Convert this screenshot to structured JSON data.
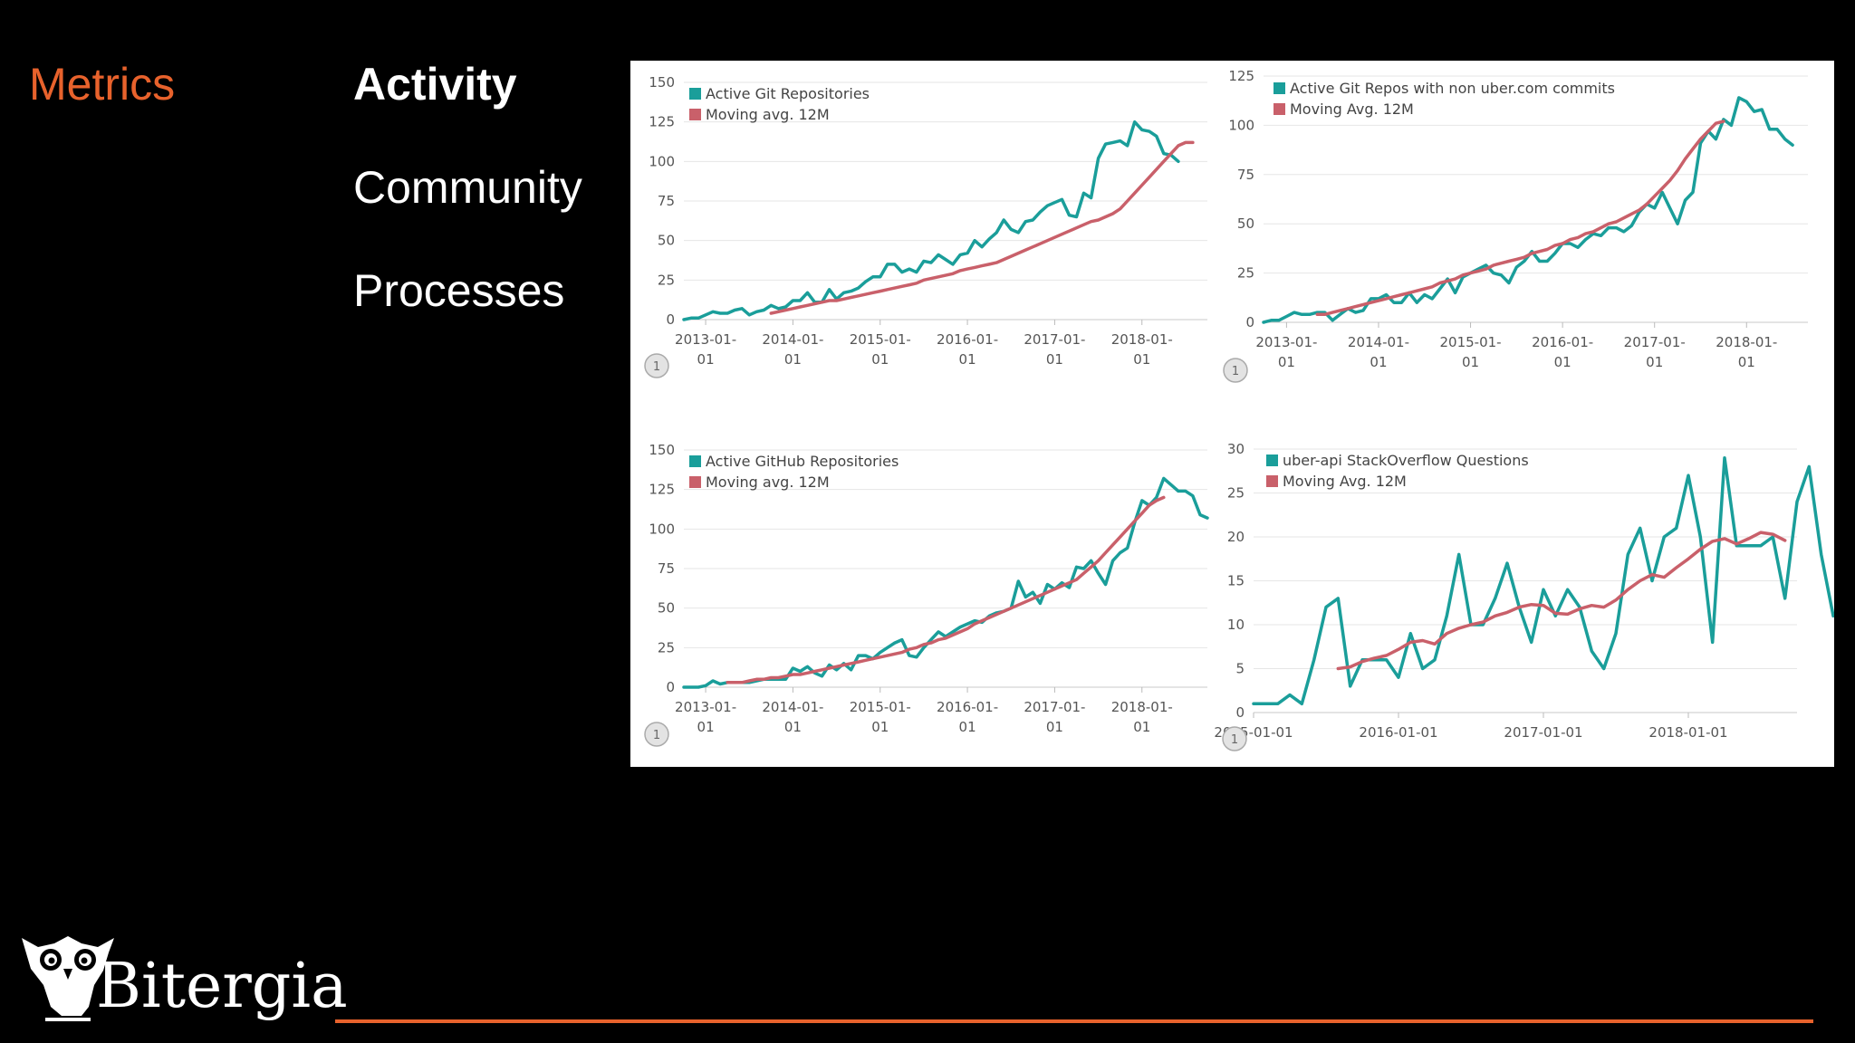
{
  "section": "Metrics",
  "nav": {
    "items": [
      {
        "label": "Activity",
        "active": true
      },
      {
        "label": "Community",
        "active": false
      },
      {
        "label": "Processes",
        "active": false
      }
    ]
  },
  "brand": {
    "name": "Bitergia"
  },
  "colors": {
    "accent": "#e8622c",
    "series_main": "#1a9e9a",
    "series_avg": "#c9606a"
  },
  "chart_data": [
    {
      "type": "line",
      "legend_position": "top-left",
      "grid": true,
      "badge": "1",
      "y_ticks": [
        0,
        25,
        50,
        75,
        100,
        125,
        150
      ],
      "ylim": [
        0,
        150
      ],
      "x_ticks": [
        {
          "x": 0,
          "label": [
            "2013-01-",
            "01"
          ]
        },
        {
          "x": 12,
          "label": [
            "2014-01-",
            "01"
          ]
        },
        {
          "x": 24,
          "label": [
            "2015-01-",
            "01"
          ]
        },
        {
          "x": 36,
          "label": [
            "2016-01-",
            "01"
          ]
        },
        {
          "x": 48,
          "label": [
            "2017-01-",
            "01"
          ]
        },
        {
          "x": 60,
          "label": [
            "2018-01-",
            "01"
          ]
        }
      ],
      "xlim": [
        -3,
        69
      ],
      "series": [
        {
          "name": "Active Git Repositories",
          "role": "main",
          "x0": -3,
          "values": [
            0,
            1,
            1,
            3,
            5,
            4,
            4,
            6,
            7,
            3,
            5,
            6,
            9,
            7,
            8,
            12,
            12,
            17,
            11,
            11,
            19,
            13,
            17,
            18,
            20,
            24,
            27,
            27,
            35,
            35,
            30,
            32,
            30,
            37,
            36,
            41,
            38,
            35,
            41,
            42,
            50,
            46,
            51,
            55,
            63,
            57,
            55,
            62,
            63,
            68,
            72,
            74,
            76,
            66,
            65,
            80,
            77,
            102,
            111,
            112,
            113,
            110,
            125,
            120,
            119,
            116,
            105,
            104,
            100
          ]
        },
        {
          "name": "Moving avg. 12M",
          "role": "avg",
          "x0": 9,
          "values": [
            4,
            5,
            6,
            7,
            8,
            9,
            10,
            11,
            12,
            12,
            13,
            14,
            15,
            16,
            17,
            18,
            19,
            20,
            21,
            22,
            23,
            25,
            26,
            27,
            28,
            29,
            31,
            32,
            33,
            34,
            35,
            36,
            38,
            40,
            42,
            44,
            46,
            48,
            50,
            52,
            54,
            56,
            58,
            60,
            62,
            63,
            65,
            67,
            70,
            75,
            80,
            85,
            90,
            95,
            100,
            105,
            110,
            112,
            112
          ]
        }
      ]
    },
    {
      "type": "line",
      "legend_position": "top-left",
      "grid": true,
      "badge": "1",
      "y_ticks": [
        0,
        25,
        50,
        75,
        100,
        125
      ],
      "ylim": [
        0,
        125
      ],
      "x_ticks": [
        {
          "x": 0,
          "label": [
            "2013-01-",
            "01"
          ]
        },
        {
          "x": 12,
          "label": [
            "2014-01-",
            "01"
          ]
        },
        {
          "x": 24,
          "label": [
            "2015-01-",
            "01"
          ]
        },
        {
          "x": 36,
          "label": [
            "2016-01-",
            "01"
          ]
        },
        {
          "x": 48,
          "label": [
            "2017-01-",
            "01"
          ]
        },
        {
          "x": 60,
          "label": [
            "2018-01-",
            "01"
          ]
        }
      ],
      "xlim": [
        -3,
        68
      ],
      "series": [
        {
          "name": "Active Git Repos with non uber.com commits",
          "role": "main",
          "x0": -3,
          "values": [
            0,
            1,
            1,
            3,
            5,
            4,
            4,
            5,
            5,
            1,
            4,
            7,
            5,
            6,
            12,
            12,
            14,
            10,
            10,
            15,
            10,
            14,
            12,
            17,
            22,
            15,
            23,
            25,
            27,
            29,
            25,
            24,
            20,
            28,
            31,
            36,
            31,
            31,
            35,
            40,
            40,
            38,
            42,
            45,
            44,
            48,
            48,
            46,
            49,
            56,
            60,
            58,
            66,
            58,
            50,
            62,
            66,
            91,
            97,
            93,
            103,
            100,
            114,
            112,
            107,
            108,
            98,
            98,
            93,
            90
          ]
        },
        {
          "name": "Moving Avg. 12M",
          "role": "avg",
          "x0": 4,
          "values": [
            4,
            4,
            5,
            6,
            7,
            8,
            9,
            10,
            11,
            12,
            13,
            14,
            15,
            16,
            17,
            18,
            20,
            21,
            22,
            24,
            25,
            26,
            27,
            29,
            30,
            31,
            32,
            33,
            35,
            36,
            37,
            39,
            40,
            42,
            43,
            45,
            46,
            48,
            50,
            51,
            53,
            55,
            57,
            60,
            64,
            68,
            72,
            77,
            83,
            88,
            93,
            97,
            101,
            102
          ]
        }
      ]
    },
    {
      "type": "line",
      "legend_position": "top-left",
      "grid": true,
      "badge": "1",
      "y_ticks": [
        0,
        25,
        50,
        75,
        100,
        125,
        150
      ],
      "ylim": [
        0,
        150
      ],
      "x_ticks": [
        {
          "x": 0,
          "label": [
            "2013-01-",
            "01"
          ]
        },
        {
          "x": 12,
          "label": [
            "2014-01-",
            "01"
          ]
        },
        {
          "x": 24,
          "label": [
            "2015-01-",
            "01"
          ]
        },
        {
          "x": 36,
          "label": [
            "2016-01-",
            "01"
          ]
        },
        {
          "x": 48,
          "label": [
            "2017-01-",
            "01"
          ]
        },
        {
          "x": 60,
          "label": [
            "2018-01-",
            "01"
          ]
        }
      ],
      "xlim": [
        -3,
        69
      ],
      "series": [
        {
          "name": "Active GitHub Repositories",
          "role": "main",
          "x0": -3,
          "values": [
            0,
            0,
            0,
            1,
            4,
            2,
            3,
            3,
            3,
            3,
            4,
            5,
            5,
            5,
            5,
            12,
            10,
            13,
            9,
            7,
            14,
            11,
            15,
            11,
            20,
            20,
            18,
            22,
            25,
            28,
            30,
            20,
            19,
            25,
            30,
            35,
            32,
            35,
            38,
            40,
            42,
            41,
            45,
            47,
            48,
            50,
            67,
            57,
            60,
            53,
            65,
            62,
            66,
            63,
            76,
            75,
            80,
            72,
            65,
            80,
            85,
            88,
            104,
            118,
            115,
            120,
            132,
            128,
            124,
            124,
            121,
            109,
            107
          ]
        },
        {
          "name": "Moving avg. 12M",
          "role": "avg",
          "x0": 3,
          "values": [
            3,
            3,
            3,
            4,
            5,
            5,
            6,
            6,
            7,
            8,
            8,
            9,
            10,
            11,
            12,
            13,
            14,
            15,
            16,
            17,
            18,
            19,
            20,
            21,
            22,
            24,
            25,
            27,
            28,
            30,
            31,
            33,
            35,
            37,
            40,
            42,
            44,
            46,
            48,
            50,
            52,
            54,
            56,
            58,
            60,
            62,
            64,
            66,
            68,
            72,
            76,
            80,
            85,
            90,
            95,
            100,
            105,
            110,
            115,
            118,
            120
          ]
        }
      ]
    },
    {
      "type": "line",
      "legend_position": "top-left",
      "grid": true,
      "badge": "1",
      "y_ticks": [
        0,
        5,
        10,
        15,
        20,
        25,
        30
      ],
      "ylim": [
        0,
        30
      ],
      "x_ticks": [
        {
          "x": 0,
          "label": [
            "2015-01-01"
          ]
        },
        {
          "x": 12,
          "label": [
            "2016-01-01"
          ]
        },
        {
          "x": 24,
          "label": [
            "2017-01-01"
          ]
        },
        {
          "x": 36,
          "label": [
            "2018-01-01"
          ]
        }
      ],
      "xlim": [
        0,
        45
      ],
      "series": [
        {
          "name": "uber-api StackOverflow Questions",
          "role": "main",
          "x0": 0,
          "values": [
            1,
            1,
            1,
            2,
            1,
            6,
            12,
            13,
            3,
            6,
            6,
            6,
            4,
            9,
            5,
            6,
            11,
            18,
            10,
            10,
            13,
            17,
            12,
            8,
            14,
            11,
            14,
            12,
            7,
            5,
            9,
            18,
            21,
            15,
            20,
            21,
            27,
            20,
            8,
            29,
            19,
            19,
            19,
            20,
            13,
            24,
            28,
            18,
            11
          ]
        },
        {
          "name": "Moving Avg. 12M",
          "role": "avg",
          "x0": 7,
          "values": [
            5,
            5.2,
            5.8,
            6.2,
            6.5,
            7.2,
            8,
            8.2,
            7.8,
            9,
            9.6,
            10,
            10.3,
            11,
            11.4,
            12,
            12.3,
            12.2,
            11.3,
            11.2,
            11.8,
            12.2,
            12,
            12.8,
            14,
            15,
            15.7,
            15.4,
            16.5,
            17.5,
            18.6,
            19.5,
            19.8,
            19.2,
            19.8,
            20.5,
            20.3,
            19.6
          ]
        }
      ]
    }
  ]
}
